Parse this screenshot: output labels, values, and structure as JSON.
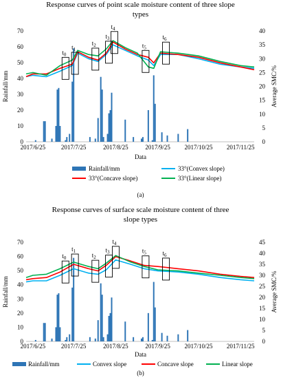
{
  "chart_data": [
    {
      "type": "bar+line",
      "title_lines": [
        "Response curves of point scale moisture content of three slope",
        "types"
      ],
      "xlabel": "Data",
      "ylabel_left": "Rainfall/mm",
      "ylabel_right": "Average SMC/%",
      "panel_label": "(a)",
      "x_range": [
        "2017-06-20",
        "2017-12-05"
      ],
      "x_ticks": [
        {
          "date": "2017-06-25",
          "label": "2017/6/25"
        },
        {
          "date": "2017-07-25",
          "label": "2017/7/25"
        },
        {
          "date": "2017-08-25",
          "label": "2017/8/25"
        },
        {
          "date": "2017-09-25",
          "label": "2017/9/25"
        },
        {
          "date": "2017-10-25",
          "label": "2017/10/25"
        },
        {
          "date": "2017-11-25",
          "label": "2017/11/25"
        }
      ],
      "ylim_left": [
        0,
        70
      ],
      "yticks_left": [
        "0",
        "10",
        "20",
        "30",
        "40",
        "50",
        "60",
        "70"
      ],
      "ylim_right": [
        0,
        40
      ],
      "yticks_right": [
        "0",
        "5",
        "10",
        "15",
        "20",
        "25",
        "30",
        "35",
        "40"
      ],
      "rainfall_name": "Rainfall/mm",
      "rainfall": [
        {
          "x": "2017-06-27",
          "y": 1
        },
        {
          "x": "2017-07-03",
          "y": 13
        },
        {
          "x": "2017-07-04",
          "y": 13
        },
        {
          "x": "2017-07-09",
          "y": 2
        },
        {
          "x": "2017-07-12",
          "y": 10
        },
        {
          "x": "2017-07-13",
          "y": 33
        },
        {
          "x": "2017-07-14",
          "y": 34
        },
        {
          "x": "2017-07-15",
          "y": 10
        },
        {
          "x": "2017-07-19",
          "y": 1
        },
        {
          "x": "2017-07-20",
          "y": 3
        },
        {
          "x": "2017-07-22",
          "y": 5
        },
        {
          "x": "2017-07-24",
          "y": 38
        },
        {
          "x": "2017-07-25",
          "y": 59
        },
        {
          "x": "2017-08-06",
          "y": 3
        },
        {
          "x": "2017-08-10",
          "y": 2
        },
        {
          "x": "2017-08-12",
          "y": 15
        },
        {
          "x": "2017-08-14",
          "y": 41
        },
        {
          "x": "2017-08-15",
          "y": 33
        },
        {
          "x": "2017-08-16",
          "y": 3
        },
        {
          "x": "2017-08-19",
          "y": 5
        },
        {
          "x": "2017-08-20",
          "y": 18
        },
        {
          "x": "2017-08-21",
          "y": 20
        },
        {
          "x": "2017-08-22",
          "y": 31
        },
        {
          "x": "2017-09-01",
          "y": 14
        },
        {
          "x": "2017-09-07",
          "y": 3
        },
        {
          "x": "2017-09-13",
          "y": 2
        },
        {
          "x": "2017-09-14",
          "y": 3
        },
        {
          "x": "2017-09-18",
          "y": 20
        },
        {
          "x": "2017-09-21",
          "y": 1
        },
        {
          "x": "2017-09-22",
          "y": 42
        },
        {
          "x": "2017-09-23",
          "y": 24
        },
        {
          "x": "2017-09-28",
          "y": 6
        },
        {
          "x": "2017-10-02",
          "y": 4
        },
        {
          "x": "2017-10-10",
          "y": 5
        },
        {
          "x": "2017-10-17",
          "y": 8
        }
      ],
      "series": [
        {
          "name": "33°(Convex slope)",
          "color": "#00b0f0",
          "points": [
            {
              "x": "2017-06-20",
              "y": 23.5
            },
            {
              "x": "2017-06-25",
              "y": 24
            },
            {
              "x": "2017-07-05",
              "y": 23.5
            },
            {
              "x": "2017-07-15",
              "y": 25.5
            },
            {
              "x": "2017-07-24",
              "y": 27.5
            },
            {
              "x": "2017-07-28",
              "y": 32
            },
            {
              "x": "2017-08-05",
              "y": 30
            },
            {
              "x": "2017-08-12",
              "y": 29
            },
            {
              "x": "2017-08-18",
              "y": 31.5
            },
            {
              "x": "2017-08-23",
              "y": 35
            },
            {
              "x": "2017-09-01",
              "y": 33
            },
            {
              "x": "2017-09-10",
              "y": 31
            },
            {
              "x": "2017-09-18",
              "y": 29.5
            },
            {
              "x": "2017-09-22",
              "y": 27.5
            },
            {
              "x": "2017-09-27",
              "y": 31.5
            },
            {
              "x": "2017-10-10",
              "y": 31.5
            },
            {
              "x": "2017-10-25",
              "y": 30
            },
            {
              "x": "2017-11-10",
              "y": 28
            },
            {
              "x": "2017-11-25",
              "y": 27
            },
            {
              "x": "2017-12-05",
              "y": 26.5
            }
          ]
        },
        {
          "name": "33°(Concave slope)",
          "color": "#ff0000",
          "points": [
            {
              "x": "2017-06-20",
              "y": 23.5
            },
            {
              "x": "2017-06-25",
              "y": 24.5
            },
            {
              "x": "2017-07-05",
              "y": 24.5
            },
            {
              "x": "2017-07-15",
              "y": 26.5
            },
            {
              "x": "2017-07-24",
              "y": 28
            },
            {
              "x": "2017-07-28",
              "y": 32.5
            },
            {
              "x": "2017-08-05",
              "y": 30.5
            },
            {
              "x": "2017-08-12",
              "y": 29.5
            },
            {
              "x": "2017-08-18",
              "y": 32
            },
            {
              "x": "2017-08-23",
              "y": 36
            },
            {
              "x": "2017-09-01",
              "y": 33.5
            },
            {
              "x": "2017-09-10",
              "y": 31.5
            },
            {
              "x": "2017-09-18",
              "y": 30.5
            },
            {
              "x": "2017-09-22",
              "y": 28.5
            },
            {
              "x": "2017-09-27",
              "y": 32
            },
            {
              "x": "2017-10-10",
              "y": 31.5
            },
            {
              "x": "2017-10-25",
              "y": 30.5
            },
            {
              "x": "2017-11-10",
              "y": 28.5
            },
            {
              "x": "2017-11-25",
              "y": 27
            },
            {
              "x": "2017-12-05",
              "y": 26
            }
          ]
        },
        {
          "name": "33°(Linear slope)",
          "color": "#00b050",
          "points": [
            {
              "x": "2017-06-20",
              "y": 24.5
            },
            {
              "x": "2017-06-25",
              "y": 25
            },
            {
              "x": "2017-07-05",
              "y": 24
            },
            {
              "x": "2017-07-15",
              "y": 27.5
            },
            {
              "x": "2017-07-24",
              "y": 29.5
            },
            {
              "x": "2017-07-28",
              "y": 33
            },
            {
              "x": "2017-08-05",
              "y": 31.5
            },
            {
              "x": "2017-08-12",
              "y": 31
            },
            {
              "x": "2017-08-18",
              "y": 33.5
            },
            {
              "x": "2017-08-23",
              "y": 36.5
            },
            {
              "x": "2017-09-01",
              "y": 34
            },
            {
              "x": "2017-09-10",
              "y": 32
            },
            {
              "x": "2017-09-18",
              "y": 27
            },
            {
              "x": "2017-09-22",
              "y": 26.5
            },
            {
              "x": "2017-09-27",
              "y": 32.5
            },
            {
              "x": "2017-10-10",
              "y": 32
            },
            {
              "x": "2017-10-25",
              "y": 31
            },
            {
              "x": "2017-11-10",
              "y": 29
            },
            {
              "x": "2017-11-25",
              "y": 27.5
            },
            {
              "x": "2017-12-05",
              "y": 27
            }
          ]
        }
      ],
      "annotations": [
        {
          "label": "t",
          "sub": "0",
          "x": "2017-07-19"
        },
        {
          "label": "t",
          "sub": "1",
          "x": "2017-07-26"
        },
        {
          "label": "t",
          "sub": "2",
          "x": "2017-08-10"
        },
        {
          "label": "t",
          "sub": "3",
          "x": "2017-08-20"
        },
        {
          "label": "t",
          "sub": "4",
          "x": "2017-08-24"
        },
        {
          "label": "t",
          "sub": "5",
          "x": "2017-09-16"
        },
        {
          "label": "t",
          "sub": "6",
          "x": "2017-10-01"
        }
      ],
      "legend": [
        "Rainfall/mm",
        "33°(Convex slope)",
        "33°(Concave slope)",
        "33°(Linear slope)"
      ]
    },
    {
      "type": "bar+line",
      "title_lines": [
        "Response curves of surface scale moisture content of three",
        "slope types"
      ],
      "xlabel": "Data",
      "ylabel_left": "Rainfall/mm",
      "ylabel_right": "Average SMC/%",
      "panel_label": "(b)",
      "x_range": [
        "2017-06-20",
        "2017-12-05"
      ],
      "x_ticks": [
        {
          "date": "2017-06-25",
          "label": "2017/6/25"
        },
        {
          "date": "2017-07-25",
          "label": "2017/7/25"
        },
        {
          "date": "2017-08-25",
          "label": "2017/8/25"
        },
        {
          "date": "2017-09-25",
          "label": "2017/9/25"
        },
        {
          "date": "2017-10-25",
          "label": "2017/10/25"
        },
        {
          "date": "2017-11-25",
          "label": "2017/11/25"
        }
      ],
      "ylim_left": [
        0,
        70
      ],
      "yticks_left": [
        "0",
        "10",
        "20",
        "30",
        "40",
        "50",
        "60",
        "70"
      ],
      "ylim_right": [
        0,
        45
      ],
      "yticks_right": [
        "0",
        "5",
        "10",
        "15",
        "20",
        "25",
        "30",
        "35",
        "40",
        "45"
      ],
      "rainfall_name": "Rainfall/mm",
      "rainfall": [
        {
          "x": "2017-06-27",
          "y": 1
        },
        {
          "x": "2017-07-03",
          "y": 13
        },
        {
          "x": "2017-07-04",
          "y": 13
        },
        {
          "x": "2017-07-09",
          "y": 2
        },
        {
          "x": "2017-07-12",
          "y": 10
        },
        {
          "x": "2017-07-13",
          "y": 33
        },
        {
          "x": "2017-07-14",
          "y": 34
        },
        {
          "x": "2017-07-15",
          "y": 10
        },
        {
          "x": "2017-07-19",
          "y": 1
        },
        {
          "x": "2017-07-20",
          "y": 3
        },
        {
          "x": "2017-07-22",
          "y": 5
        },
        {
          "x": "2017-07-24",
          "y": 38
        },
        {
          "x": "2017-07-25",
          "y": 59
        },
        {
          "x": "2017-08-06",
          "y": 3
        },
        {
          "x": "2017-08-10",
          "y": 2
        },
        {
          "x": "2017-08-12",
          "y": 15
        },
        {
          "x": "2017-08-14",
          "y": 41
        },
        {
          "x": "2017-08-15",
          "y": 33
        },
        {
          "x": "2017-08-16",
          "y": 3
        },
        {
          "x": "2017-08-19",
          "y": 5
        },
        {
          "x": "2017-08-20",
          "y": 18
        },
        {
          "x": "2017-08-21",
          "y": 20
        },
        {
          "x": "2017-08-22",
          "y": 31
        },
        {
          "x": "2017-09-01",
          "y": 14
        },
        {
          "x": "2017-09-07",
          "y": 3
        },
        {
          "x": "2017-09-13",
          "y": 2
        },
        {
          "x": "2017-09-14",
          "y": 3
        },
        {
          "x": "2017-09-18",
          "y": 20
        },
        {
          "x": "2017-09-21",
          "y": 1
        },
        {
          "x": "2017-09-22",
          "y": 42
        },
        {
          "x": "2017-09-23",
          "y": 24
        },
        {
          "x": "2017-09-28",
          "y": 6
        },
        {
          "x": "2017-10-02",
          "y": 4
        },
        {
          "x": "2017-10-10",
          "y": 5
        },
        {
          "x": "2017-10-17",
          "y": 8
        }
      ],
      "series": [
        {
          "name": "Convex slope",
          "color": "#00b0f0",
          "points": [
            {
              "x": "2017-06-20",
              "y": 27
            },
            {
              "x": "2017-06-25",
              "y": 27.5
            },
            {
              "x": "2017-07-05",
              "y": 27.5
            },
            {
              "x": "2017-07-15",
              "y": 30
            },
            {
              "x": "2017-07-25",
              "y": 33
            },
            {
              "x": "2017-08-05",
              "y": 31
            },
            {
              "x": "2017-08-12",
              "y": 30.5
            },
            {
              "x": "2017-08-18",
              "y": 32.5
            },
            {
              "x": "2017-08-25",
              "y": 37
            },
            {
              "x": "2017-09-05",
              "y": 35
            },
            {
              "x": "2017-09-15",
              "y": 33
            },
            {
              "x": "2017-09-25",
              "y": 32
            },
            {
              "x": "2017-10-10",
              "y": 31.5
            },
            {
              "x": "2017-10-25",
              "y": 30.5
            },
            {
              "x": "2017-11-10",
              "y": 29
            },
            {
              "x": "2017-11-25",
              "y": 28
            },
            {
              "x": "2017-12-05",
              "y": 27.5
            }
          ]
        },
        {
          "name": "Concave slope",
          "color": "#ff0000",
          "points": [
            {
              "x": "2017-06-20",
              "y": 28
            },
            {
              "x": "2017-06-25",
              "y": 28.5
            },
            {
              "x": "2017-07-05",
              "y": 29
            },
            {
              "x": "2017-07-15",
              "y": 31.5
            },
            {
              "x": "2017-07-25",
              "y": 35
            },
            {
              "x": "2017-08-05",
              "y": 33
            },
            {
              "x": "2017-08-12",
              "y": 32
            },
            {
              "x": "2017-08-18",
              "y": 34.5
            },
            {
              "x": "2017-08-25",
              "y": 38.5
            },
            {
              "x": "2017-09-05",
              "y": 36.5
            },
            {
              "x": "2017-09-15",
              "y": 34.5
            },
            {
              "x": "2017-09-25",
              "y": 34
            },
            {
              "x": "2017-10-10",
              "y": 33
            },
            {
              "x": "2017-10-25",
              "y": 32
            },
            {
              "x": "2017-11-10",
              "y": 30.5
            },
            {
              "x": "2017-11-25",
              "y": 29.5
            },
            {
              "x": "2017-12-05",
              "y": 29
            }
          ]
        },
        {
          "name": "Linear slope",
          "color": "#00b050",
          "points": [
            {
              "x": "2017-06-20",
              "y": 29
            },
            {
              "x": "2017-06-25",
              "y": 30
            },
            {
              "x": "2017-07-05",
              "y": 30.5
            },
            {
              "x": "2017-07-15",
              "y": 33
            },
            {
              "x": "2017-07-25",
              "y": 36
            },
            {
              "x": "2017-08-05",
              "y": 34
            },
            {
              "x": "2017-08-12",
              "y": 33
            },
            {
              "x": "2017-08-18",
              "y": 35.5
            },
            {
              "x": "2017-08-25",
              "y": 39
            },
            {
              "x": "2017-09-05",
              "y": 36
            },
            {
              "x": "2017-09-15",
              "y": 34
            },
            {
              "x": "2017-09-25",
              "y": 32.5
            },
            {
              "x": "2017-10-10",
              "y": 32
            },
            {
              "x": "2017-10-25",
              "y": 31
            },
            {
              "x": "2017-11-10",
              "y": 30
            },
            {
              "x": "2017-11-25",
              "y": 29
            },
            {
              "x": "2017-12-05",
              "y": 28.5
            }
          ]
        }
      ],
      "annotations": [
        {
          "label": "t",
          "sub": "0",
          "x": "2017-07-19"
        },
        {
          "label": "t",
          "sub": "1",
          "x": "2017-07-26"
        },
        {
          "label": "t",
          "sub": "2",
          "x": "2017-08-10"
        },
        {
          "label": "t",
          "sub": "3",
          "x": "2017-08-20"
        },
        {
          "label": "t",
          "sub": "4",
          "x": "2017-08-25"
        },
        {
          "label": "t",
          "sub": "5",
          "x": "2017-09-16"
        },
        {
          "label": "t",
          "sub": "6",
          "x": "2017-10-01"
        }
      ],
      "legend": [
        "Rainfall/mm",
        "Convex slope",
        "Concave slope",
        "Linear slope"
      ]
    }
  ]
}
